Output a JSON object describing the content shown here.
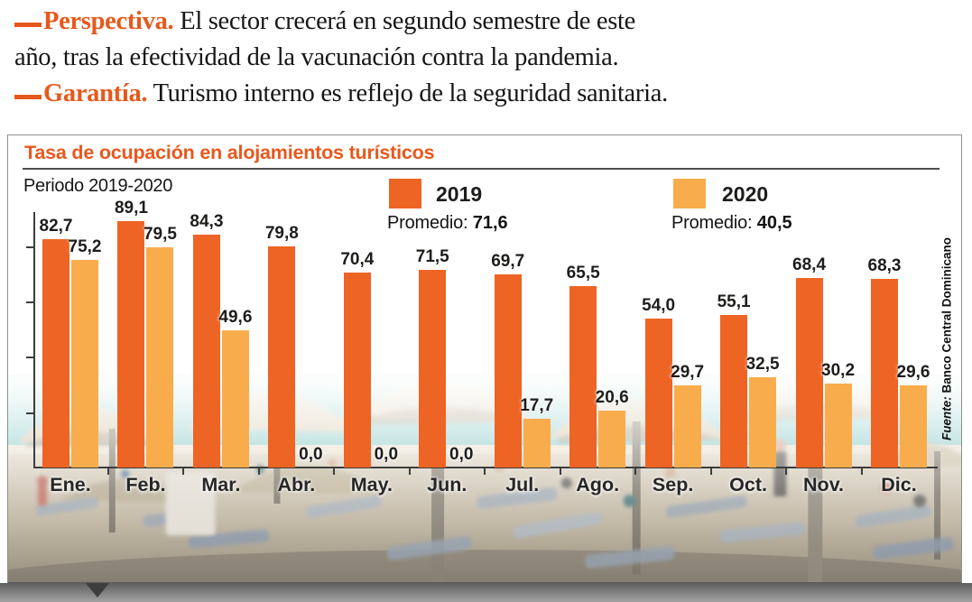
{
  "page": {
    "header": {
      "items": [
        {
          "label": "Perspectiva.",
          "line1": "El sector crecerá en segundo semestre de este",
          "line2": "año, tras la efectividad de la vacunación contra la pandemia."
        },
        {
          "label": "Garantía.",
          "line1": "Turismo interno es reflejo de la seguridad sanitaria."
        }
      ]
    },
    "colors": {
      "accent_orange": "#e8581c",
      "bar_2019": "#ee6424",
      "bar_2020": "#f9ac4c"
    }
  },
  "chart": {
    "title": "Tasa de ocupación en alojamientos turísticos",
    "subtitle": "Periodo 2019-2020",
    "promedio_label": "Promedio:",
    "source_label": "Fuente:",
    "source_name": "Banco Central Dominicano"
  },
  "chart_data": {
    "type": "bar",
    "title": "Tasa de ocupación en alojamientos turísticos",
    "subtitle": "Periodo 2019-2020",
    "categories": [
      "Ene.",
      "Feb.",
      "Mar.",
      "Abr.",
      "May.",
      "Jun.",
      "Jul.",
      "Ago.",
      "Sep.",
      "Oct.",
      "Nov.",
      "Dic."
    ],
    "series": [
      {
        "name": "2019",
        "color": "#ee6424",
        "average_label": "71,6",
        "average": 71.6,
        "values": [
          82.7,
          89.1,
          84.3,
          79.8,
          70.4,
          71.5,
          69.7,
          65.5,
          54.0,
          55.1,
          68.4,
          68.3
        ],
        "labels": [
          "82,7",
          "89,1",
          "84,3",
          "79,8",
          "70,4",
          "71,5",
          "69,7",
          "65,5",
          "54,0",
          "55,1",
          "68,4",
          "68,3"
        ]
      },
      {
        "name": "2020",
        "color": "#f9ac4c",
        "average_label": "40,5",
        "average": 40.5,
        "values": [
          75.2,
          79.5,
          49.6,
          0.0,
          0.0,
          0.0,
          17.7,
          20.6,
          29.7,
          32.5,
          30.2,
          29.6
        ],
        "labels": [
          "75,2",
          "79,5",
          "49,6",
          "0,0",
          "0,0",
          "0,0",
          "17,7",
          "20,6",
          "29,7",
          "32,5",
          "30,2",
          "29,6"
        ]
      }
    ],
    "ylim": [
      0,
      92
    ],
    "y_ticks": [
      20,
      40,
      60,
      80
    ],
    "grid": false,
    "legend_position": "top",
    "source": "Fuente: Banco Central Dominicano"
  }
}
